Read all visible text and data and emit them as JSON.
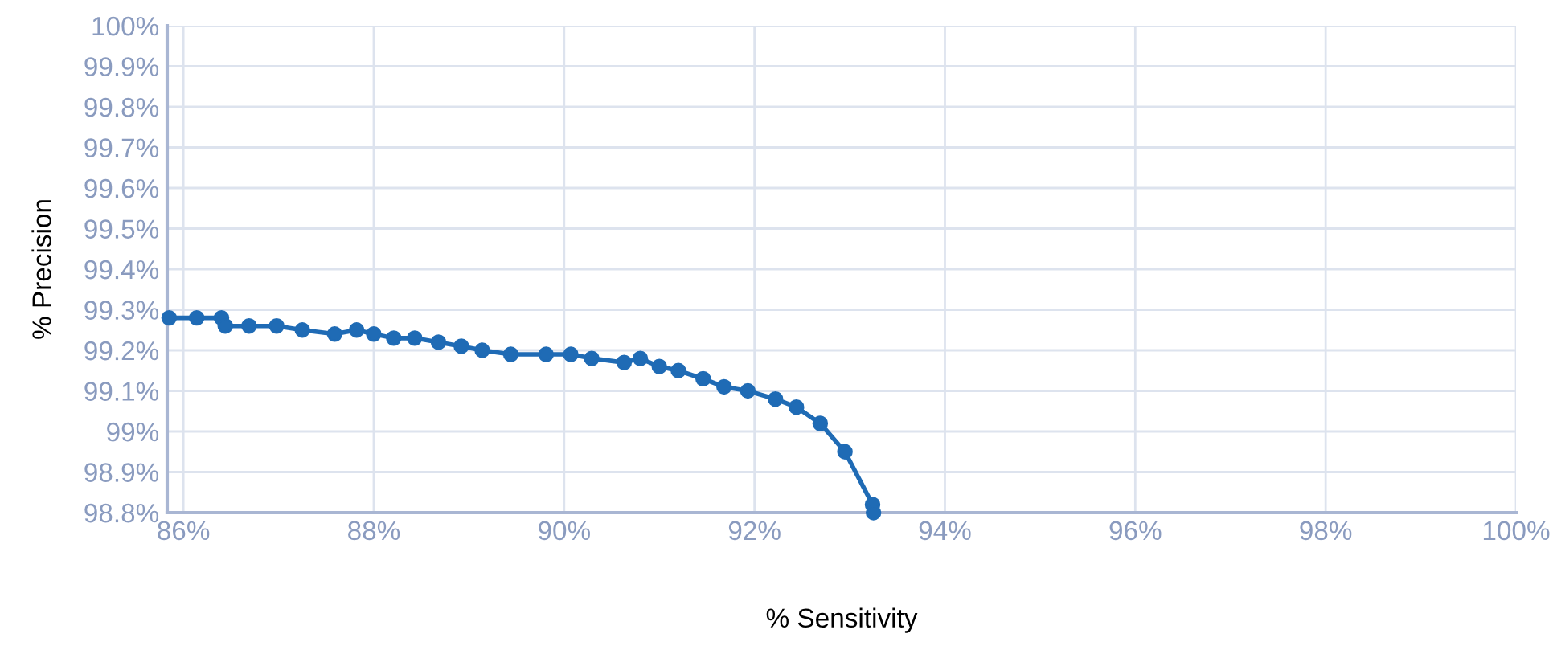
{
  "chart_data": {
    "type": "line",
    "xlabel": "% Sensitivity",
    "ylabel": "% Precision",
    "x": [
      85.85,
      86.14,
      86.4,
      86.44,
      86.69,
      86.98,
      87.25,
      87.59,
      87.82,
      88.0,
      88.21,
      88.43,
      88.68,
      88.92,
      89.14,
      89.44,
      89.81,
      90.07,
      90.29,
      90.63,
      90.8,
      91.0,
      91.2,
      91.46,
      91.68,
      91.93,
      92.22,
      92.44,
      92.69,
      92.95,
      93.24,
      93.25
    ],
    "series": [
      {
        "color": "#1f6bb5",
        "values": [
          99.28,
          99.28,
          99.28,
          99.26,
          99.26,
          99.26,
          99.25,
          99.24,
          99.25,
          99.24,
          99.23,
          99.23,
          99.22,
          99.21,
          99.2,
          99.19,
          99.19,
          99.19,
          99.18,
          99.17,
          99.18,
          99.16,
          99.15,
          99.13,
          99.11,
          99.1,
          99.08,
          99.06,
          99.02,
          98.95,
          98.82,
          98.8
        ]
      }
    ],
    "xlim": [
      85.83,
      100
    ],
    "ylim": [
      98.8,
      100
    ],
    "xticks": [
      {
        "value": 86,
        "label": "86%"
      },
      {
        "value": 88,
        "label": "88%"
      },
      {
        "value": 90,
        "label": "90%"
      },
      {
        "value": 92,
        "label": "92%"
      },
      {
        "value": 94,
        "label": "94%"
      },
      {
        "value": 96,
        "label": "96%"
      },
      {
        "value": 98,
        "label": "98%"
      },
      {
        "value": 100,
        "label": "100%"
      }
    ],
    "yticks": [
      {
        "value": 98.8,
        "label": "98.8%"
      },
      {
        "value": 98.9,
        "label": "98.9%"
      },
      {
        "value": 99,
        "label": "99%"
      },
      {
        "value": 99.1,
        "label": "99.1%"
      },
      {
        "value": 99.2,
        "label": "99.2%"
      },
      {
        "value": 99.3,
        "label": "99.3%"
      },
      {
        "value": 99.4,
        "label": "99.4%"
      },
      {
        "value": 99.5,
        "label": "99.5%"
      },
      {
        "value": 99.6,
        "label": "99.6%"
      },
      {
        "value": 99.7,
        "label": "99.7%"
      },
      {
        "value": 99.8,
        "label": "99.8%"
      },
      {
        "value": 99.9,
        "label": "99.9%"
      },
      {
        "value": 100,
        "label": "100%"
      }
    ],
    "grid": true,
    "marker": "circle",
    "line_style": "solid"
  }
}
